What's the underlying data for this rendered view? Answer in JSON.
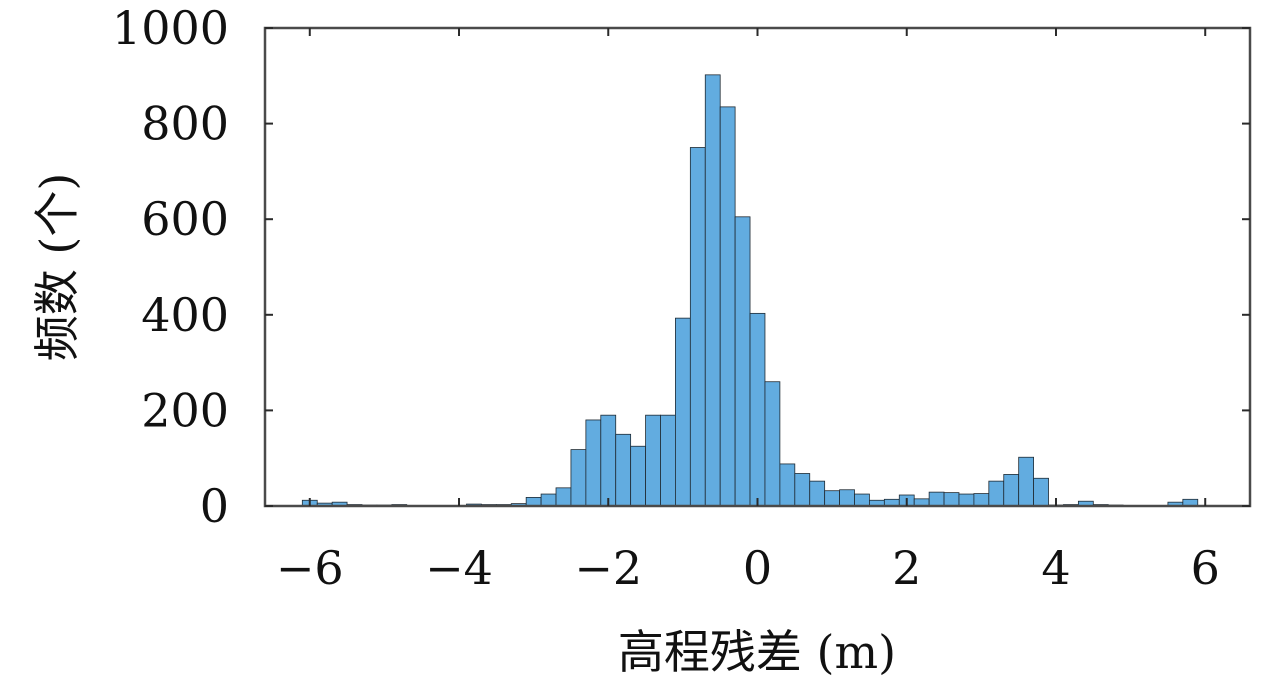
{
  "chart_data": {
    "type": "bar",
    "title": "",
    "xlabel": "高程残差 (m)",
    "ylabel": "频数 (个)",
    "xlim": [
      -6.6,
      6.6
    ],
    "ylim": [
      0,
      1000
    ],
    "xticks": [
      -6,
      -4,
      -2,
      0,
      2,
      4,
      6
    ],
    "xtick_labels": [
      "−6",
      "−4",
      "−2",
      "0",
      "2",
      "4",
      "6"
    ],
    "yticks": [
      0,
      200,
      400,
      600,
      800,
      1000
    ],
    "ytick_labels": [
      "0",
      "200",
      "400",
      "600",
      "800",
      "1000"
    ],
    "grid": false,
    "bar_color": "#62ace0",
    "bin_width": 0.2,
    "bin_edges_start": -6.1,
    "values": [
      12,
      6,
      8,
      3,
      2,
      2,
      3,
      1,
      1,
      1,
      1,
      4,
      3,
      3,
      5,
      18,
      25,
      38,
      118,
      180,
      190,
      150,
      125,
      190,
      190,
      393,
      750,
      902,
      835,
      605,
      403,
      260,
      88,
      68,
      52,
      32,
      34,
      25,
      12,
      14,
      23,
      15,
      29,
      28,
      25,
      26,
      52,
      66,
      102,
      58,
      2,
      3,
      10,
      3,
      2,
      1,
      1,
      1,
      8,
      14
    ]
  }
}
